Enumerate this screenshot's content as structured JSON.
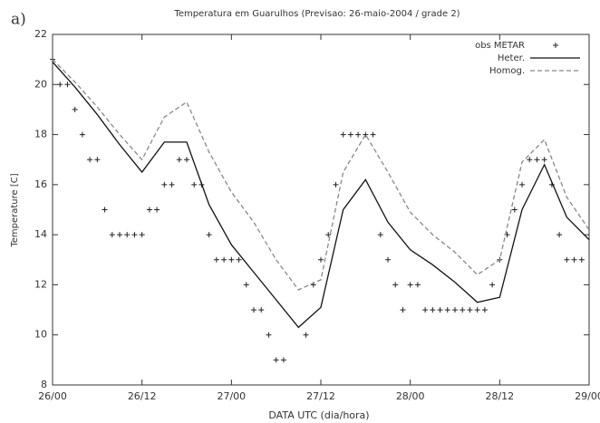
{
  "chart_data": {
    "type": "line",
    "panel_label": "a)",
    "title": "Temperatura em Guarulhos (Previsao: 26-maio-2004 / grade 2)",
    "xlabel": "DATA UTC (dia/hora)",
    "ylabel": "Temperature [C]",
    "xlim": [
      0,
      72
    ],
    "ylim": [
      8,
      22
    ],
    "xticks": [
      {
        "value": 0,
        "label": "26/00"
      },
      {
        "value": 12,
        "label": "26/12"
      },
      {
        "value": 24,
        "label": "27/00"
      },
      {
        "value": 36,
        "label": "27/12"
      },
      {
        "value": 48,
        "label": "28/00"
      },
      {
        "value": 60,
        "label": "28/12"
      },
      {
        "value": 72,
        "label": "29/00"
      }
    ],
    "yticks": [
      8,
      10,
      12,
      14,
      16,
      18,
      20,
      22
    ],
    "legend": "top-right",
    "x": [
      0,
      3,
      6,
      9,
      12,
      15,
      18,
      21,
      24,
      27,
      30,
      33,
      36,
      39,
      42,
      45,
      48,
      51,
      54,
      57,
      60,
      63,
      66,
      69,
      72
    ],
    "series": [
      {
        "name": "obs METAR",
        "color": "#222222",
        "marker": "+",
        "x": [
          0,
          1,
          2,
          3,
          4,
          5,
          6,
          7,
          8,
          9,
          10,
          11,
          12,
          13,
          14,
          15,
          16,
          17,
          18,
          19,
          20,
          21,
          22,
          23,
          24,
          25,
          26,
          27,
          28,
          29,
          30,
          31,
          34,
          35,
          36,
          37,
          38,
          39,
          40,
          41,
          42,
          43,
          44,
          45,
          46,
          47,
          48,
          49,
          50,
          51,
          52,
          53,
          54,
          55,
          56,
          57,
          58,
          59,
          60,
          61,
          62,
          63,
          64,
          65,
          66,
          67,
          68,
          69,
          70,
          71
        ],
        "values": [
          21,
          20,
          20,
          19,
          18,
          17,
          17,
          15,
          14,
          14,
          14,
          14,
          14,
          15,
          15,
          16,
          16,
          17,
          17,
          16,
          16,
          14,
          13,
          13,
          13,
          13,
          12,
          11,
          11,
          10,
          9,
          9,
          10,
          12,
          13,
          14,
          16,
          18,
          18,
          18,
          18,
          18,
          14,
          13,
          12,
          11,
          12,
          12,
          11,
          11,
          11,
          11,
          11,
          11,
          11,
          11,
          11,
          12,
          13,
          14,
          15,
          16,
          17,
          17,
          17,
          16,
          14,
          13,
          13,
          13
        ]
      },
      {
        "name": "Heter.",
        "color": "#111111",
        "dash": "solid",
        "values": [
          20.9,
          19.9,
          18.8,
          17.6,
          16.5,
          17.7,
          17.7,
          15.2,
          13.6,
          12.5,
          11.4,
          10.3,
          11.1,
          15.0,
          16.2,
          14.5,
          13.4,
          12.8,
          12.1,
          11.3,
          11.5,
          15.0,
          16.8,
          14.7,
          13.8
        ]
      },
      {
        "name": "Homog.",
        "color": "#888888",
        "dash": "dashed",
        "values": [
          21.0,
          20.1,
          19.1,
          18.0,
          17.0,
          18.7,
          19.3,
          17.3,
          15.7,
          14.5,
          13.0,
          11.8,
          12.2,
          16.5,
          18.0,
          16.5,
          14.9,
          14.0,
          13.3,
          12.4,
          13.0,
          16.9,
          17.8,
          15.5,
          14.2
        ]
      }
    ]
  }
}
